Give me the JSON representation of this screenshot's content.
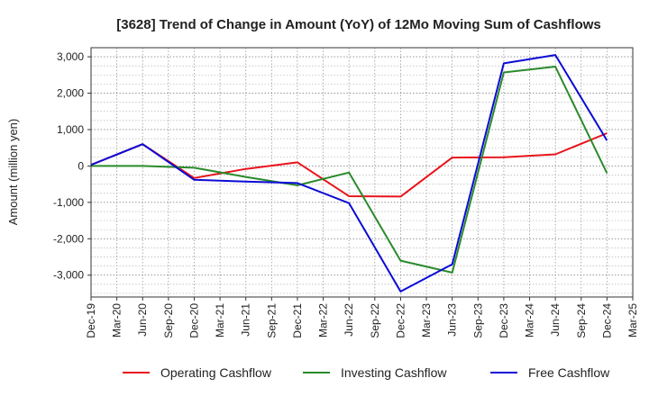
{
  "chart_data": {
    "type": "line",
    "title": "[3628]  Trend of Change in Amount (YoY) of 12Mo Moving Sum of Cashflows",
    "xlabel": "",
    "ylabel": "Amount (million yen)",
    "ylim": [
      -3600,
      3250
    ],
    "yticks": [
      3000,
      2000,
      1000,
      0,
      -1000,
      -2000,
      -3000
    ],
    "ytick_labels": [
      "3,000",
      "2,000",
      "1,000",
      "0",
      "-1,000",
      "-2,000",
      "-3,000"
    ],
    "x_ticks": [
      "Dec-19",
      "Mar-20",
      "Jun-20",
      "Sep-20",
      "Dec-20",
      "Mar-21",
      "Jun-21",
      "Sep-21",
      "Dec-21",
      "Mar-22",
      "Jun-22",
      "Sep-22",
      "Dec-22",
      "Mar-23",
      "Jun-23",
      "Sep-23",
      "Dec-23",
      "Mar-24",
      "Jun-24",
      "Sep-24",
      "Dec-24",
      "Mar-25"
    ],
    "x": [
      "Dec-19",
      "Jun-20",
      "Dec-20",
      "Jun-21",
      "Dec-21",
      "Jun-22",
      "Dec-22",
      "Jun-23",
      "Dec-23",
      "Jun-24",
      "Dec-24"
    ],
    "grid": true,
    "legend_position": "bottom",
    "series": [
      {
        "name": "Operating Cashflow",
        "color": "#e8141c",
        "values": [
          30,
          600,
          -330,
          -80,
          100,
          -830,
          -840,
          230,
          240,
          320,
          900
        ]
      },
      {
        "name": "Investing Cashflow",
        "color": "#2a8a2a",
        "values": [
          0,
          0,
          -50,
          -300,
          -530,
          -180,
          -2600,
          -2930,
          2570,
          2730,
          -200
        ]
      },
      {
        "name": "Free Cashflow",
        "color": "#0b0bd6",
        "values": [
          30,
          600,
          -380,
          -430,
          -470,
          -1020,
          -3450,
          -2700,
          2820,
          3050,
          700
        ]
      }
    ]
  }
}
